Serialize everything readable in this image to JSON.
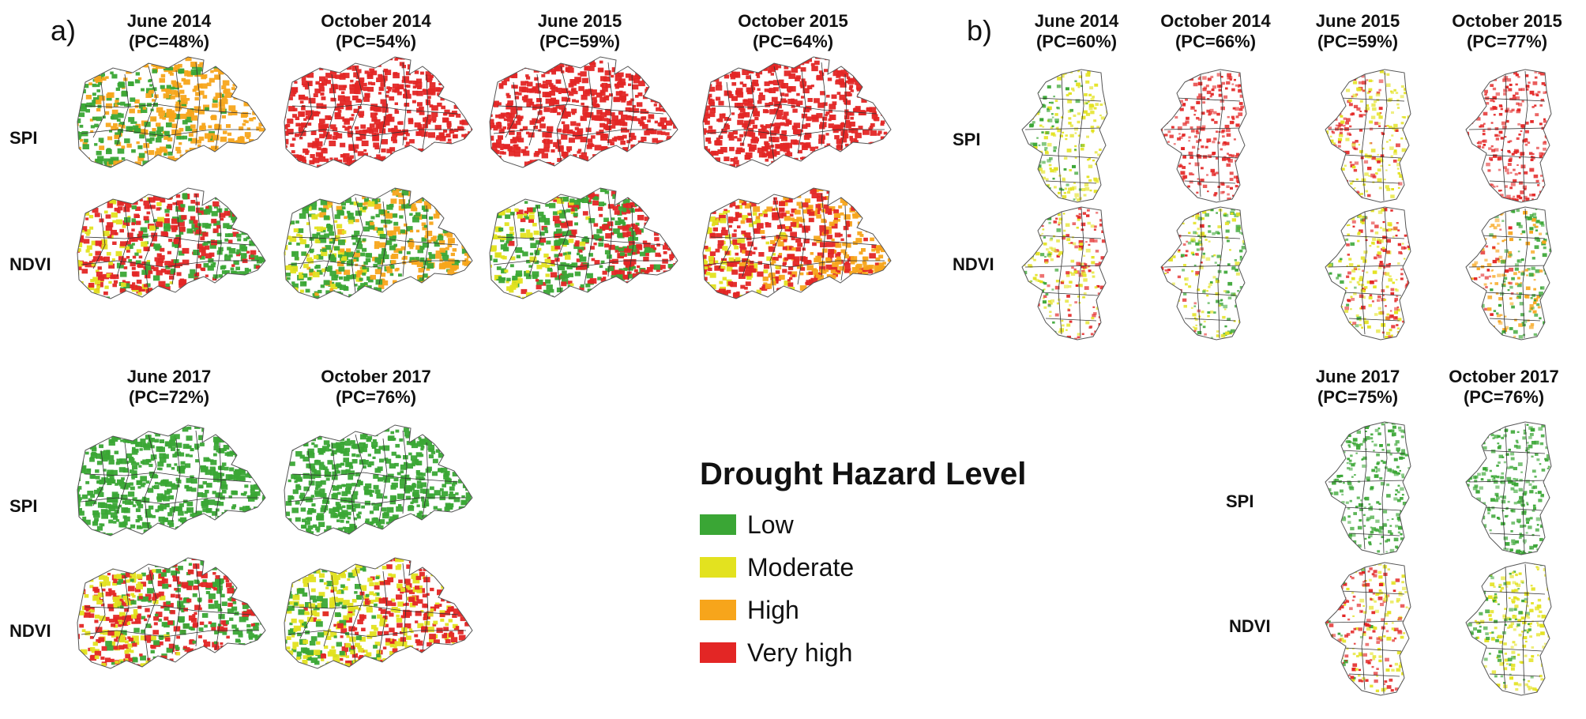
{
  "panels": {
    "a": {
      "label": "a)",
      "top_columns": [
        {
          "date": "June 2014",
          "pc": "(PC=48%)"
        },
        {
          "date": "October 2014",
          "pc": "(PC=54%)"
        },
        {
          "date": "June 2015",
          "pc": "(PC=59%)"
        },
        {
          "date": "October 2015",
          "pc": "(PC=64%)"
        }
      ],
      "bottom_columns": [
        {
          "date": "June 2017",
          "pc": "(PC=72%)"
        },
        {
          "date": "October 2017",
          "pc": "(PC=76%)"
        }
      ]
    },
    "b": {
      "label": "b)",
      "top_columns": [
        {
          "date": "June 2014",
          "pc": "(PC=60%)"
        },
        {
          "date": "October 2014",
          "pc": "(PC=66%)"
        },
        {
          "date": "June 2015",
          "pc": "(PC=59%)"
        },
        {
          "date": "October 2015",
          "pc": "(PC=77%)"
        }
      ],
      "bottom_columns": [
        {
          "date": "June 2017",
          "pc": "(PC=75%)"
        },
        {
          "date": "October 2017",
          "pc": "(PC=76%)"
        }
      ]
    }
  },
  "rows": {
    "spi": "SPI",
    "ndvi": "NDVI"
  },
  "legend": {
    "title": "Drought Hazard Level",
    "items": [
      {
        "label": "Low",
        "color": "#3aa635"
      },
      {
        "label": "Moderate",
        "color": "#e3e21f"
      },
      {
        "label": "High",
        "color": "#f7a51b"
      },
      {
        "label": "Very high",
        "color": "#e32625"
      }
    ]
  },
  "maps": {
    "a_spi_jun2014": [
      "#3aa635",
      "#f7a51b"
    ],
    "a_spi_oct2014": [
      "#e32625"
    ],
    "a_spi_jun2015": [
      "#e32625"
    ],
    "a_spi_oct2015": [
      "#e32625"
    ],
    "a_ndvi_jun2014": [
      "#e3e21f",
      "#e32625",
      "#3aa635"
    ],
    "a_ndvi_oct2014": [
      "#e3e21f",
      "#3aa635",
      "#f7a51b"
    ],
    "a_ndvi_jun2015": [
      "#e3e21f",
      "#3aa635",
      "#e32625"
    ],
    "a_ndvi_oct2015": [
      "#e3e21f",
      "#e32625",
      "#f7a51b"
    ],
    "a_spi_jun2017": [
      "#3aa635"
    ],
    "a_spi_oct2017": [
      "#3aa635"
    ],
    "a_ndvi_jun2017": [
      "#e3e21f",
      "#e32625",
      "#3aa635"
    ],
    "a_ndvi_oct2017": [
      "#3aa635",
      "#e3e21f",
      "#e32625"
    ],
    "b_spi_jun2014": [
      "#3aa635",
      "#e3e21f"
    ],
    "b_spi_oct2014": [
      "#e32625"
    ],
    "b_spi_jun2015": [
      "#e32625",
      "#e3e21f"
    ],
    "b_spi_oct2015": [
      "#e32625"
    ],
    "b_ndvi_jun2014": [
      "#3aa635",
      "#e3e21f",
      "#e32625"
    ],
    "b_ndvi_oct2014": [
      "#e32625",
      "#e3e21f",
      "#3aa635"
    ],
    "b_ndvi_jun2015": [
      "#3aa635",
      "#e3e21f",
      "#e32625"
    ],
    "b_ndvi_oct2015": [
      "#e32625",
      "#f7a51b",
      "#3aa635"
    ],
    "b_spi_jun2017": [
      "#3aa635"
    ],
    "b_spi_oct2017": [
      "#3aa635"
    ],
    "b_ndvi_jun2017": [
      "#3aa635",
      "#e32625",
      "#e3e21f"
    ],
    "b_ndvi_oct2017": [
      "#3aa635",
      "#e3e21f"
    ]
  }
}
